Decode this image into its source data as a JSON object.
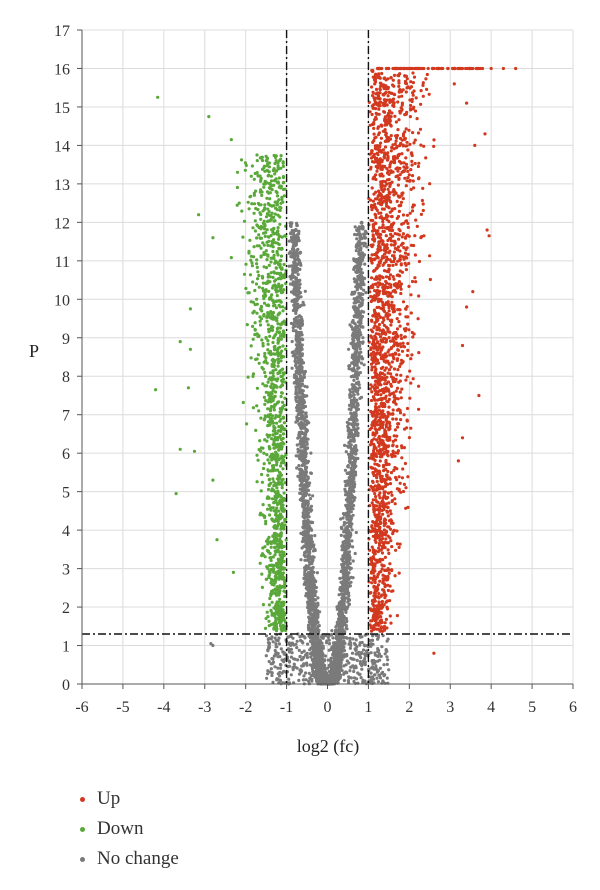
{
  "chart_data": {
    "type": "scatter",
    "title": "",
    "xlabel": "log2 (fc)",
    "ylabel": "P",
    "xlim": [
      -6,
      6
    ],
    "ylim": [
      0,
      17
    ],
    "xticks": [
      "-6",
      "-5",
      "-4",
      "-3",
      "-2",
      "-1",
      "0",
      "1",
      "2",
      "3",
      "4",
      "5",
      "6"
    ],
    "yticks": [
      "0",
      "1",
      "2",
      "3",
      "4",
      "5",
      "6",
      "7",
      "8",
      "9",
      "10",
      "11",
      "12",
      "13",
      "14",
      "15",
      "16",
      "17"
    ],
    "grid": true,
    "thresholds": {
      "fc_lines": [
        -1,
        1
      ],
      "p_line": 1.3
    },
    "colors": {
      "up": "#d2391f",
      "down": "#5aa83a",
      "no_change": "#7a7a7a"
    },
    "series": [
      {
        "name": "Up",
        "outliers": [
          [
            3.1,
            15.6
          ],
          [
            3.4,
            15.1
          ],
          [
            3.85,
            14.3
          ],
          [
            3.6,
            14.0
          ],
          [
            3.9,
            11.8
          ],
          [
            3.95,
            11.65
          ],
          [
            3.55,
            10.2
          ],
          [
            3.4,
            9.8
          ],
          [
            3.3,
            8.8
          ],
          [
            3.7,
            7.5
          ],
          [
            3.3,
            6.4
          ],
          [
            3.2,
            5.8
          ],
          [
            2.6,
            0.8
          ],
          [
            4.6,
            16.0
          ],
          [
            4.3,
            16.0
          ],
          [
            4.0,
            16.0
          ]
        ]
      },
      {
        "name": "Down",
        "outliers": [
          [
            -4.15,
            15.25
          ],
          [
            -2.9,
            14.75
          ],
          [
            -2.35,
            14.15
          ],
          [
            -2.2,
            13.3
          ],
          [
            -3.15,
            12.2
          ],
          [
            -2.8,
            11.6
          ],
          [
            -3.35,
            9.75
          ],
          [
            -3.6,
            8.9
          ],
          [
            -3.35,
            8.7
          ],
          [
            -4.2,
            7.65
          ],
          [
            -3.4,
            7.7
          ],
          [
            -3.6,
            6.1
          ],
          [
            -3.25,
            6.05
          ],
          [
            -3.7,
            4.95
          ],
          [
            -2.8,
            5.3
          ],
          [
            -2.7,
            3.75
          ],
          [
            -2.3,
            2.9
          ]
        ]
      },
      {
        "name": "No change",
        "outliers": [
          [
            -2.85,
            1.05
          ],
          [
            -2.8,
            1.0
          ],
          [
            -0.05,
            0.05
          ],
          [
            0.05,
            0.05
          ],
          [
            -0.3,
            0.6
          ],
          [
            0.4,
            0.7
          ]
        ]
      }
    ]
  },
  "legend": {
    "up": "Up",
    "down": "Down",
    "no_change": "No change"
  }
}
